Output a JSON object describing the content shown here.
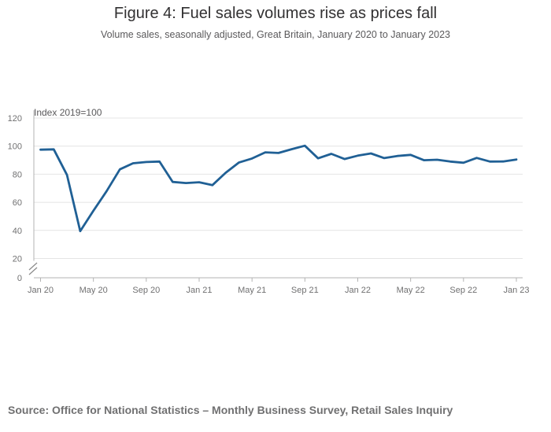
{
  "chart_data": {
    "type": "line",
    "title": "Figure 4: Fuel sales volumes rise as prices fall",
    "subtitle": "Volume sales, seasonally adjusted, Great Britain, January 2020 to January 2023",
    "ylabel": "Index 2019=100",
    "xlabel": "",
    "ylim": [
      0,
      120
    ],
    "y_ticks": [
      0,
      20,
      40,
      60,
      80,
      100,
      120
    ],
    "x_ticks": [
      {
        "label": "Jan 20",
        "index": 0
      },
      {
        "label": "May 20",
        "index": 4
      },
      {
        "label": "Sep 20",
        "index": 8
      },
      {
        "label": "Jan 21",
        "index": 12
      },
      {
        "label": "May 21",
        "index": 16
      },
      {
        "label": "Sep 21",
        "index": 20
      },
      {
        "label": "Jan 22",
        "index": 24
      },
      {
        "label": "May 22",
        "index": 28
      },
      {
        "label": "Sep 22",
        "index": 32
      },
      {
        "label": "Jan 23",
        "index": 36
      }
    ],
    "series": [
      {
        "name": "Fuel sales volumes",
        "color": "#206095",
        "values": [
          97.5,
          97.7,
          79.5,
          39.5,
          54,
          68,
          83.5,
          87.8,
          88.7,
          89,
          74.5,
          73.7,
          74.3,
          72.2,
          81,
          88.3,
          91.2,
          95.6,
          95.1,
          97.8,
          100.3,
          91.3,
          94.5,
          90.8,
          93.2,
          94.8,
          91.5,
          93,
          93.8,
          90,
          90.3,
          89,
          88.2,
          91.6,
          89,
          89.1,
          90.5
        ]
      }
    ],
    "grid": true,
    "axis_break": true
  },
  "source": "Source: Office for National Statistics – Monthly Business Survey, Retail Sales Inquiry"
}
